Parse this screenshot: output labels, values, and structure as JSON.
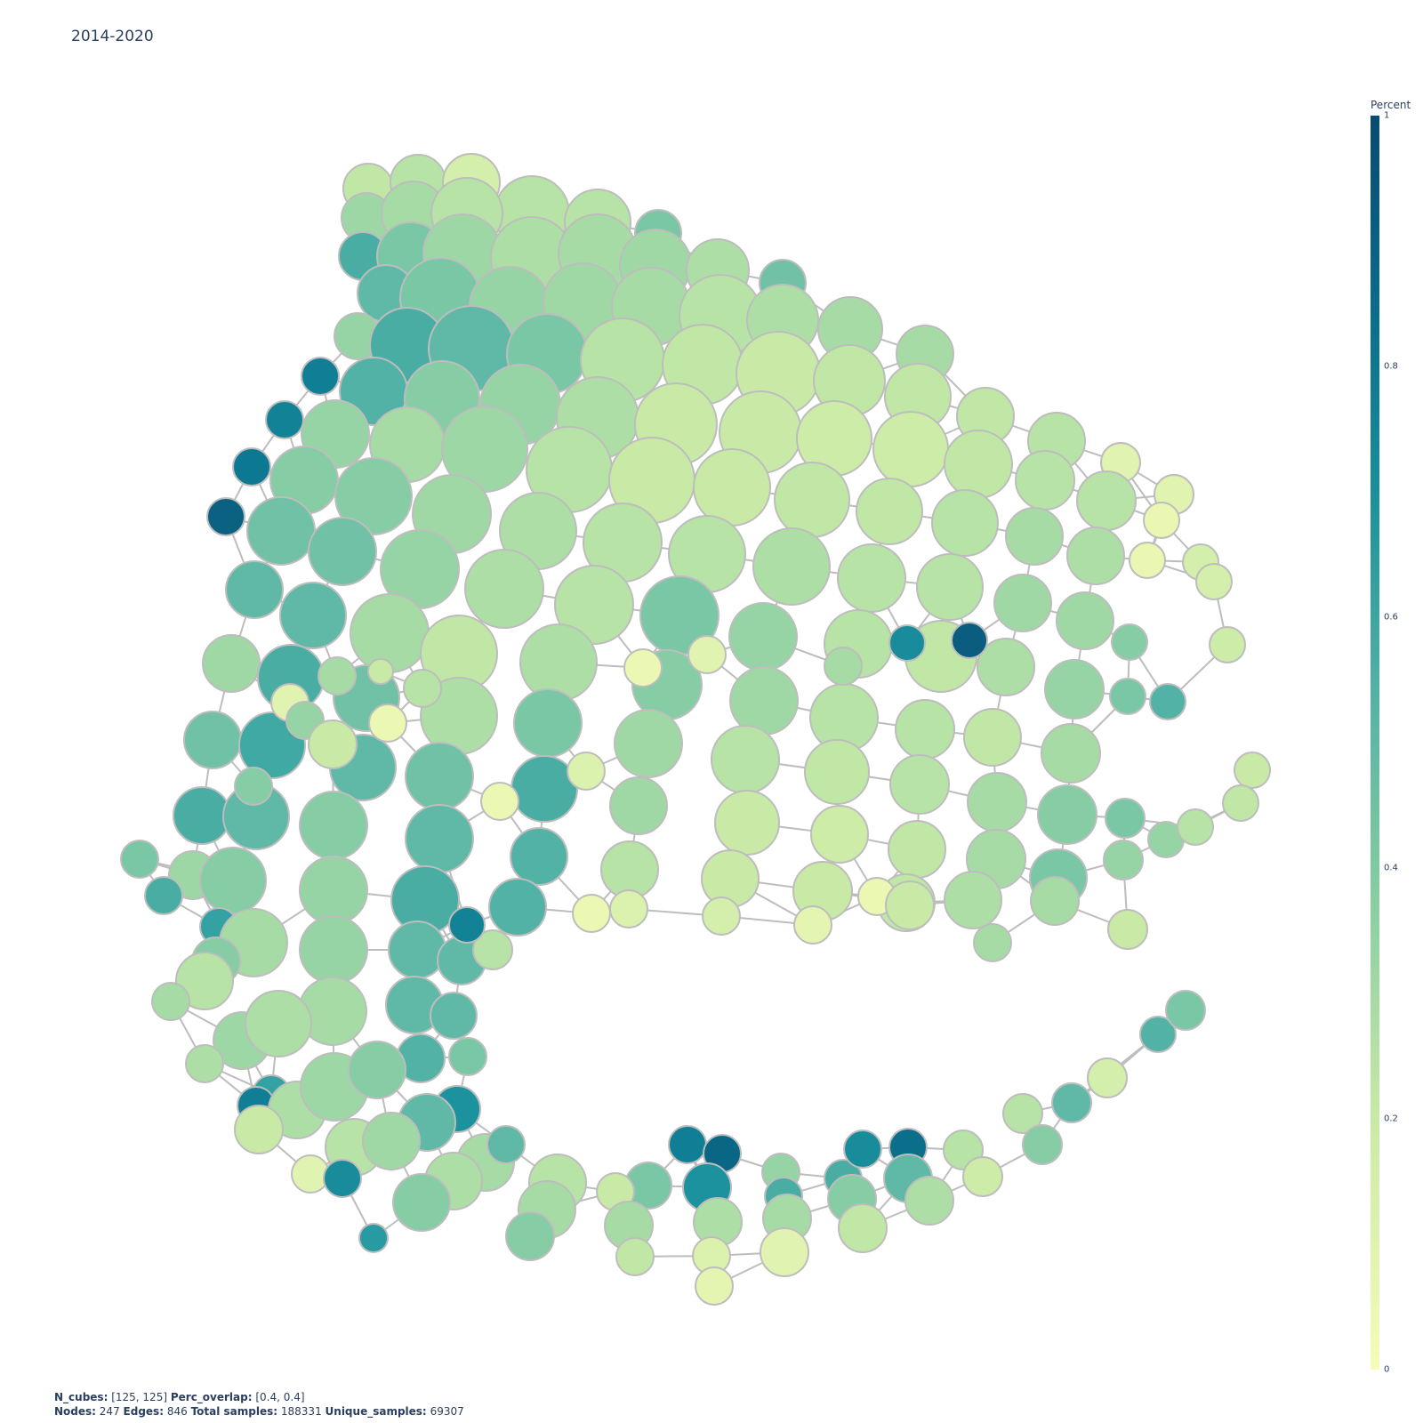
{
  "title": "2014-2020",
  "colorbar": {
    "title": "Percent",
    "ticks": [
      "1",
      "0.8",
      "0.6",
      "0.4",
      "0.2",
      "0"
    ],
    "colors": [
      "#f7fcb9",
      "#c8eaa6",
      "#7fcaa0",
      "#4fb0a5",
      "#1a8f9a",
      "#0a6b8a",
      "#084b73"
    ]
  },
  "footer": {
    "n_cubes_label": "N_cubes:",
    "n_cubes_value": "[125, 125]",
    "perc_overlap_label": "Perc_overlap:",
    "perc_overlap_value": "[0.4, 0.4]",
    "nodes_label": "Nodes:",
    "nodes_value": "247",
    "edges_label": "Edges:",
    "edges_value": "846",
    "total_samples_label": "Total samples:",
    "total_samples_value": "188331",
    "unique_samples_label": "Unique_samples:",
    "unique_samples_value": "69307"
  },
  "style": {
    "edge_color": "#bdbdbd",
    "node_outline": "#bdbdbd"
  }
}
